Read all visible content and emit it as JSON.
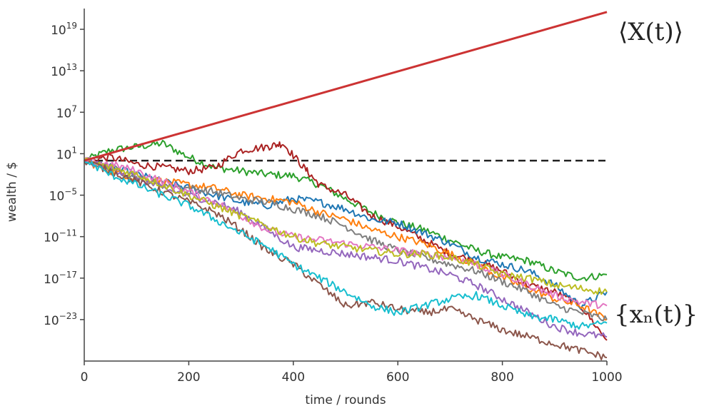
{
  "chart_data": {
    "type": "line",
    "title": "",
    "xlabel": "time / rounds",
    "ylabel": "wealth / $",
    "xlim": [
      0,
      1000
    ],
    "ylim_log10": [
      -29,
      22
    ],
    "y_scale": "log",
    "grid": false,
    "x_ticks": [
      {
        "value": 0,
        "label": "0"
      },
      {
        "value": 200,
        "label": "200"
      },
      {
        "value": 400,
        "label": "400"
      },
      {
        "value": 600,
        "label": "600"
      },
      {
        "value": 800,
        "label": "800"
      },
      {
        "value": 1000,
        "label": "1000"
      }
    ],
    "y_ticks": [
      {
        "exp": 19,
        "base": "10",
        "sup": "19"
      },
      {
        "exp": 13,
        "base": "10",
        "sup": "13"
      },
      {
        "exp": 7,
        "base": "10",
        "sup": "7"
      },
      {
        "exp": 1,
        "base": "10",
        "sup": "1"
      },
      {
        "exp": -5,
        "base": "10",
        "sup": "−5"
      },
      {
        "exp": -11,
        "base": "10",
        "sup": "−11"
      },
      {
        "exp": -17,
        "base": "10",
        "sup": "−17"
      },
      {
        "exp": -23,
        "base": "10",
        "sup": "−23"
      }
    ],
    "annotations": {
      "ensemble_label": "⟨X(t)⟩",
      "trajectories_label": "{xₙ(t)}"
    },
    "reference_line": {
      "color": "#222222",
      "style": "dashed",
      "x": [
        0,
        1000
      ],
      "y_log10": [
        0,
        0
      ]
    },
    "series": [
      {
        "color": "#cc3333",
        "x": [
          0,
          1000
        ],
        "y_log10": [
          0,
          21.5
        ]
      },
      {
        "color": "#2ca02c",
        "x": [
          0,
          50,
          100,
          150,
          200,
          250,
          300,
          350,
          400,
          450,
          500,
          550,
          600,
          650,
          700,
          750,
          800,
          850,
          900,
          950,
          1000
        ],
        "y_log10": [
          0,
          1.5,
          2,
          2.5,
          0.5,
          -1,
          -1.5,
          -2,
          -2.2,
          -3.5,
          -5.5,
          -7.5,
          -9,
          -10,
          -11.5,
          -13,
          -14,
          -14.5,
          -16,
          -17,
          -16.5
        ]
      },
      {
        "color": "#aa2222",
        "x": [
          0,
          50,
          100,
          150,
          200,
          250,
          300,
          350,
          380,
          420,
          450,
          500,
          550,
          600,
          650,
          700,
          750,
          800,
          850,
          900,
          950,
          1000
        ],
        "y_log10": [
          0,
          0.5,
          -0.5,
          -1,
          -1.5,
          -1,
          1.5,
          2,
          2.5,
          -1,
          -3.5,
          -5,
          -8,
          -9.5,
          -11.5,
          -13.5,
          -14.5,
          -16,
          -18,
          -19,
          -21,
          -26
        ]
      },
      {
        "color": "#1f77b4",
        "x": [
          0,
          50,
          100,
          150,
          200,
          250,
          300,
          350,
          400,
          450,
          500,
          550,
          600,
          650,
          700,
          750,
          800,
          850,
          900,
          950,
          1000
        ],
        "y_log10": [
          0,
          -1,
          -2,
          -3,
          -4,
          -5,
          -6,
          -6.5,
          -5.5,
          -6,
          -7,
          -8.5,
          -9,
          -10.5,
          -12,
          -14,
          -15,
          -16,
          -18,
          -21,
          -19
        ]
      },
      {
        "color": "#ff7f0e",
        "x": [
          0,
          50,
          100,
          150,
          200,
          250,
          300,
          350,
          400,
          450,
          500,
          550,
          600,
          650,
          700,
          750,
          800,
          850,
          900,
          950,
          1000
        ],
        "y_log10": [
          0,
          -1.5,
          -2.5,
          -3,
          -3.5,
          -4,
          -5,
          -5.5,
          -6,
          -7.5,
          -8.5,
          -10,
          -11,
          -12,
          -13.5,
          -15,
          -17,
          -18.5,
          -20,
          -21,
          -23
        ]
      },
      {
        "color": "#7f7f7f",
        "x": [
          0,
          50,
          100,
          150,
          200,
          250,
          300,
          350,
          400,
          450,
          500,
          550,
          600,
          650,
          700,
          750,
          800,
          850,
          900,
          950,
          1000
        ],
        "y_log10": [
          0,
          -1,
          -2.5,
          -3.5,
          -4,
          -4.5,
          -5.5,
          -6,
          -7,
          -8,
          -9.5,
          -11.5,
          -13,
          -14,
          -15,
          -16,
          -17.5,
          -19,
          -21,
          -22,
          -23
        ]
      },
      {
        "color": "#9467bd",
        "x": [
          0,
          50,
          100,
          150,
          200,
          250,
          300,
          350,
          400,
          450,
          500,
          550,
          600,
          650,
          700,
          750,
          800,
          850,
          900,
          950,
          1000
        ],
        "y_log10": [
          0,
          -1,
          -2.5,
          -4,
          -5,
          -6,
          -7.5,
          -10,
          -12.5,
          -13,
          -13.5,
          -14,
          -14.5,
          -15.5,
          -16.5,
          -18,
          -20,
          -22,
          -24,
          -25,
          -25.5
        ]
      },
      {
        "color": "#e377c2",
        "x": [
          0,
          50,
          100,
          150,
          200,
          250,
          300,
          350,
          400,
          450,
          500,
          550,
          600,
          650,
          700,
          750,
          800,
          850,
          900,
          950,
          1000
        ],
        "y_log10": [
          0,
          -0.5,
          -1.5,
          -3,
          -4.5,
          -6,
          -8,
          -10,
          -11,
          -11.5,
          -12,
          -12.5,
          -13,
          -13.5,
          -14,
          -15,
          -16.5,
          -18,
          -19.5,
          -20.5,
          -21
        ]
      },
      {
        "color": "#bcbd22",
        "x": [
          0,
          50,
          100,
          150,
          200,
          250,
          300,
          350,
          400,
          450,
          500,
          550,
          600,
          650,
          700,
          750,
          800,
          850,
          900,
          950,
          1000
        ],
        "y_log10": [
          0,
          -1,
          -2,
          -3.5,
          -5,
          -6.5,
          -8,
          -9.5,
          -11,
          -12,
          -12.5,
          -13,
          -13.5,
          -13.5,
          -14,
          -15,
          -16.5,
          -17,
          -18,
          -18.5,
          -19
        ]
      },
      {
        "color": "#8c564b",
        "x": [
          0,
          50,
          100,
          150,
          200,
          250,
          300,
          350,
          400,
          450,
          500,
          550,
          600,
          650,
          700,
          750,
          800,
          850,
          900,
          950,
          1000
        ],
        "y_log10": [
          0,
          -1.5,
          -3,
          -4.5,
          -6,
          -7.5,
          -10,
          -13,
          -15,
          -18,
          -21,
          -20.5,
          -21.5,
          -22,
          -21.5,
          -23,
          -24.5,
          -25.5,
          -26.5,
          -27.5,
          -28.5
        ]
      },
      {
        "color": "#17becf",
        "x": [
          0,
          50,
          100,
          150,
          200,
          250,
          300,
          350,
          400,
          450,
          500,
          550,
          600,
          650,
          700,
          750,
          800,
          850,
          900,
          950,
          1000
        ],
        "y_log10": [
          0,
          -2,
          -3.5,
          -5,
          -6.5,
          -8.5,
          -10.5,
          -12.5,
          -15,
          -17,
          -19,
          -21,
          -22,
          -21,
          -20,
          -19.5,
          -21,
          -22.5,
          -23,
          -24,
          -23.5
        ]
      }
    ]
  }
}
